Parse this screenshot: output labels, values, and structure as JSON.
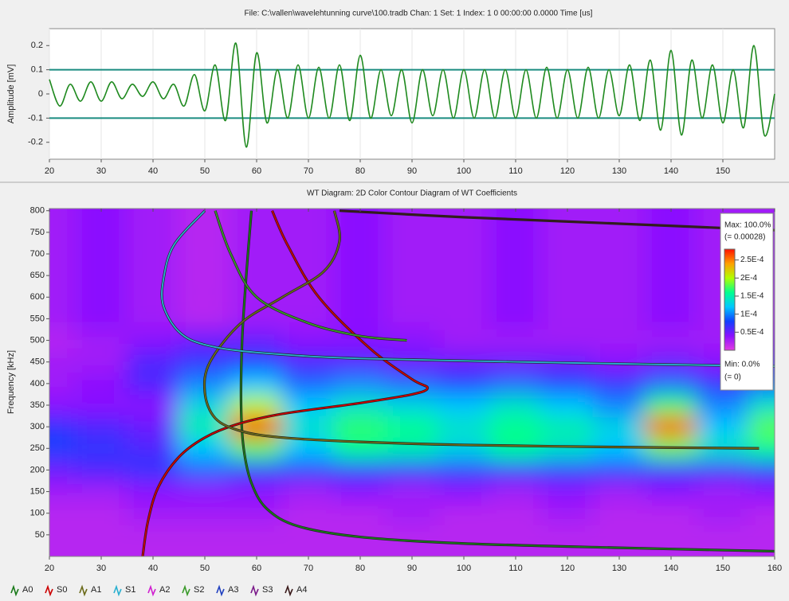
{
  "chart_data": [
    {
      "type": "line",
      "title": "File: C:\\vallen\\wavelehtunning curve\\100.tradb  Chan: 1  Set: 1  Index: 1  0 00:00:00  0.0000  Time [us]",
      "ylabel": "Amplitude [mV]",
      "x": [
        20,
        22,
        24,
        26,
        28,
        30,
        32,
        34,
        36,
        38,
        40,
        42,
        44,
        46,
        48,
        50,
        52,
        54,
        56,
        58,
        60,
        62,
        64,
        66,
        68,
        70,
        72,
        74,
        76,
        78,
        80,
        82,
        84,
        86,
        88,
        90,
        92,
        94,
        96,
        98,
        100,
        102,
        104,
        106,
        108,
        110,
        112,
        114,
        116,
        118,
        120,
        122,
        124,
        126,
        128,
        130,
        132,
        134,
        136,
        138,
        140,
        142,
        144,
        146,
        148,
        150,
        152,
        154,
        156,
        158,
        160
      ],
      "values": [
        0.06,
        -0.05,
        0.04,
        -0.03,
        0.05,
        -0.03,
        0.05,
        -0.02,
        0.04,
        -0.01,
        0.05,
        -0.02,
        0.04,
        -0.05,
        0.08,
        -0.07,
        0.12,
        -0.11,
        0.21,
        -0.22,
        0.17,
        -0.12,
        0.1,
        -0.1,
        0.12,
        -0.1,
        0.11,
        -0.1,
        0.12,
        -0.11,
        0.16,
        -0.1,
        0.1,
        -0.09,
        0.1,
        -0.12,
        0.1,
        -0.09,
        0.1,
        -0.1,
        0.1,
        -0.1,
        0.1,
        -0.1,
        0.1,
        -0.1,
        0.1,
        -0.1,
        0.11,
        -0.1,
        0.1,
        -0.1,
        0.11,
        -0.1,
        0.1,
        -0.09,
        0.12,
        -0.11,
        0.14,
        -0.15,
        0.18,
        -0.17,
        0.14,
        -0.1,
        0.12,
        -0.12,
        0.1,
        -0.14,
        0.2,
        -0.17,
        0.0
      ],
      "color": "#1f8a1f",
      "xlim": [
        20,
        160
      ],
      "xticks": [
        20,
        30,
        40,
        50,
        60,
        70,
        80,
        90,
        100,
        110,
        120,
        130,
        140,
        150
      ],
      "ylim": [
        -0.27,
        0.27
      ],
      "yticks": [
        -0.2,
        -0.1,
        0,
        0.1,
        0.2
      ],
      "thresholds": [
        0.1,
        -0.1
      ],
      "threshold_color": "#1a8c80"
    },
    {
      "type": "heatmap",
      "title": "WT Diagram: 2D Color Contour Diagram of WT Coefficients",
      "ylabel": "Frequency [kHz]",
      "x": [
        20,
        30,
        40,
        50,
        60,
        70,
        80,
        90,
        100,
        110,
        120,
        130,
        140,
        150,
        160
      ],
      "y": [
        50,
        100,
        150,
        200,
        250,
        300,
        350,
        400,
        450,
        500,
        550,
        600,
        650,
        700,
        750,
        800
      ],
      "z": [
        [
          2e-05,
          2e-05,
          2e-05,
          2e-05,
          2e-05,
          2e-05,
          2e-05,
          2e-05,
          2e-05,
          2e-05,
          2e-05,
          2e-05,
          2e-05,
          2e-05,
          2e-05
        ],
        [
          2e-05,
          2e-05,
          3e-05,
          3e-05,
          3e-05,
          2e-05,
          2e-05,
          3e-05,
          2e-05,
          2e-05,
          3e-05,
          2e-05,
          2e-05,
          3e-05,
          2e-05
        ],
        [
          3e-05,
          3e-05,
          4e-05,
          4e-05,
          4e-05,
          3e-05,
          4e-05,
          3e-05,
          4e-05,
          3e-05,
          4e-05,
          3e-05,
          4e-05,
          3e-05,
          4e-05
        ],
        [
          5e-05,
          6e-05,
          7e-05,
          9e-05,
          8e-05,
          8e-05,
          8e-05,
          8e-05,
          8e-05,
          8e-05,
          8e-05,
          8e-05,
          7e-05,
          7e-05,
          8e-05
        ],
        [
          8e-05,
          7e-05,
          6e-05,
          0.00012,
          0.00018,
          0.00012,
          0.00016,
          0.00015,
          0.00013,
          0.00016,
          0.00014,
          0.00012,
          0.00018,
          0.00014,
          0.00016
        ],
        [
          7e-05,
          6e-05,
          5e-05,
          0.00015,
          0.00028,
          0.00014,
          0.00017,
          0.00016,
          0.00014,
          0.00016,
          0.00015,
          0.00013,
          0.00026,
          0.00012,
          0.00018
        ],
        [
          4e-05,
          4e-05,
          4e-05,
          0.00013,
          0.0002,
          0.00012,
          0.00014,
          0.00013,
          0.00012,
          0.00014,
          0.00012,
          0.0001,
          0.00017,
          0.0001,
          0.00014
        ],
        [
          3e-05,
          4e-05,
          6e-05,
          0.0001,
          0.00012,
          9e-05,
          0.0001,
          9e-05,
          8e-05,
          9e-05,
          8e-05,
          7e-05,
          9e-05,
          7e-05,
          9e-05
        ],
        [
          3e-05,
          3e-05,
          6e-05,
          7e-05,
          8e-05,
          6e-05,
          6e-05,
          5e-05,
          5e-05,
          5e-05,
          5e-05,
          4e-05,
          5e-05,
          4e-05,
          6e-05
        ],
        [
          2e-05,
          3e-05,
          4e-05,
          5e-05,
          5e-05,
          4e-05,
          4e-05,
          4e-05,
          3e-05,
          3e-05,
          3e-05,
          3e-05,
          3e-05,
          3e-05,
          4e-05
        ],
        [
          3e-05,
          4e-05,
          3e-05,
          2e-05,
          3e-05,
          3e-05,
          4e-05,
          3e-05,
          3e-05,
          4e-05,
          3e-05,
          3e-05,
          4e-05,
          3e-05,
          3e-05
        ],
        [
          3e-05,
          4e-05,
          3e-05,
          2e-05,
          3e-05,
          3e-05,
          4e-05,
          3e-05,
          3e-05,
          4e-05,
          3e-05,
          3e-05,
          4e-05,
          3e-05,
          3e-05
        ],
        [
          3e-05,
          4e-05,
          3e-05,
          2e-05,
          3e-05,
          3e-05,
          4e-05,
          3e-05,
          3e-05,
          4e-05,
          3e-05,
          3e-05,
          4e-05,
          3e-05,
          3e-05
        ],
        [
          3e-05,
          4e-05,
          3e-05,
          2e-05,
          3e-05,
          3e-05,
          4e-05,
          3e-05,
          3e-05,
          4e-05,
          3e-05,
          3e-05,
          4e-05,
          3e-05,
          3e-05
        ],
        [
          3e-05,
          4e-05,
          3e-05,
          2e-05,
          3e-05,
          3e-05,
          4e-05,
          3e-05,
          3e-05,
          4e-05,
          3e-05,
          3e-05,
          4e-05,
          3e-05,
          3e-05
        ],
        [
          3e-05,
          4e-05,
          3e-05,
          2e-05,
          3e-05,
          3e-05,
          4e-05,
          3e-05,
          3e-05,
          4e-05,
          3e-05,
          3e-05,
          4e-05,
          3e-05,
          3e-05
        ]
      ],
      "xlim": [
        20,
        160
      ],
      "xticks": [
        20,
        30,
        40,
        50,
        60,
        70,
        80,
        90,
        100,
        110,
        120,
        130,
        140,
        150,
        160
      ],
      "ylim": [
        0,
        805
      ],
      "yticks": [
        50,
        100,
        150,
        200,
        250,
        300,
        350,
        400,
        450,
        500,
        550,
        600,
        650,
        700,
        750,
        800
      ],
      "zlim": [
        0,
        0.00028
      ],
      "zticks": [
        {
          "value": 0.00025,
          "label": "2.5E-4"
        },
        {
          "value": 0.0002,
          "label": "2E-4"
        },
        {
          "value": 0.00015,
          "label": "1.5E-4"
        },
        {
          "value": 0.0001,
          "label": "1E-4"
        },
        {
          "value": 5e-05,
          "label": "0.5E-4"
        }
      ],
      "colormap": [
        "#e23ce2",
        "#8a10ff",
        "#1040ff",
        "#00c8ff",
        "#00ff90",
        "#b0ff00",
        "#ffa000",
        "#ff1000"
      ],
      "colorbar_max": "Max: 100.0%",
      "colorbar_max_value": "(= 0.00028)",
      "colorbar_min": "Min: 0.0%",
      "colorbar_min_value": "(= 0)",
      "series": [
        {
          "name": "A0",
          "color": "#1a7a1a",
          "x": [
            59,
            58,
            57.2,
            57,
            57.5,
            59,
            62,
            68,
            80,
            100,
            130,
            160
          ],
          "values": [
            800,
            650,
            500,
            350,
            250,
            170,
            110,
            70,
            45,
            30,
            20,
            12
          ]
        },
        {
          "name": "S0",
          "color": "#cc0000",
          "x": [
            38,
            39,
            41,
            45,
            50,
            56,
            65,
            80,
            90,
            93,
            90,
            82,
            72,
            66,
            63
          ],
          "values": [
            0,
            80,
            160,
            230,
            275,
            305,
            330,
            355,
            375,
            390,
            410,
            480,
            600,
            720,
            800
          ]
        },
        {
          "name": "A1",
          "color": "#6b6b1a",
          "x": [
            75,
            76,
            73,
            65,
            57,
            51,
            50,
            52,
            57,
            65,
            80,
            100,
            130,
            157
          ],
          "values": [
            800,
            730,
            660,
            600,
            540,
            450,
            380,
            320,
            290,
            275,
            265,
            258,
            253,
            250
          ]
        },
        {
          "name": "S1",
          "color": "#2ab0d0",
          "x": [
            50,
            44,
            42,
            42,
            45,
            50,
            60,
            80,
            120,
            160
          ],
          "values": [
            800,
            720,
            640,
            580,
            520,
            490,
            472,
            458,
            448,
            440
          ]
        },
        {
          "name": "A2",
          "color": "#d020d0"
        },
        {
          "name": "S2",
          "color": "#3a9a2a",
          "x": [
            52,
            55,
            60,
            70,
            80,
            89
          ],
          "values": [
            800,
            700,
            600,
            540,
            510,
            500
          ]
        },
        {
          "name": "A3",
          "color": "#2040c0"
        },
        {
          "name": "S3",
          "color": "#7a1a8a"
        },
        {
          "name": "A4",
          "color": "#3a1a1a",
          "x": [
            76,
            100,
            130,
            160
          ],
          "values": [
            800,
            785,
            770,
            755
          ]
        }
      ]
    }
  ]
}
